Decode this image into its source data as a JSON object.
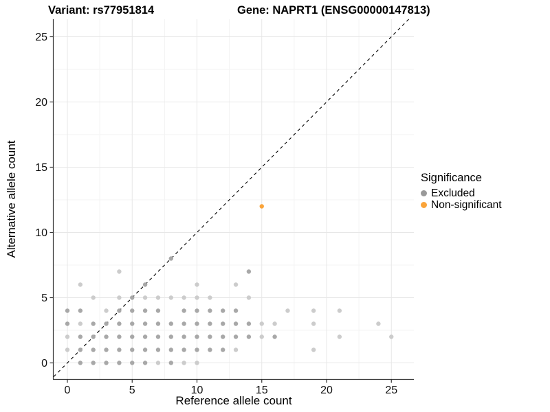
{
  "header": {
    "variant_title": "Variant: rs77951814",
    "gene_title": "Gene: NAPRT1 (ENSG00000147813)"
  },
  "chart_data": {
    "type": "scatter",
    "title": "",
    "xlabel": "Reference allele count",
    "ylabel": "Alternative allele count",
    "xlim": [
      0,
      25
    ],
    "ylim": [
      0,
      25
    ],
    "x_ticks": [
      0,
      5,
      10,
      15,
      20,
      25
    ],
    "y_ticks": [
      0,
      5,
      10,
      15,
      20,
      25
    ],
    "minor_gridlines": [
      2.5,
      7.5,
      12.5,
      17.5,
      22.5
    ],
    "grid": "major and minor, light gray on white",
    "identity_line": {
      "type": "dashed",
      "equation": "y = x",
      "color": "#000000"
    },
    "point_shades": {
      "1": "#cccccc",
      "2": "#a8a8a8"
    },
    "legend": {
      "title": "Significance",
      "position": "right",
      "items": [
        {
          "label": "Excluded",
          "color": "#999999"
        },
        {
          "label": "Non-significant",
          "color": "#FAA43A"
        }
      ]
    },
    "series": [
      {
        "name": "Excluded",
        "color": "#999999",
        "points": [
          [
            1,
            0,
            2
          ],
          [
            2,
            0,
            2
          ],
          [
            3,
            0,
            2
          ],
          [
            4,
            0,
            2
          ],
          [
            5,
            0,
            2
          ],
          [
            6,
            0,
            2
          ],
          [
            7,
            0,
            1
          ],
          [
            8,
            0,
            2
          ],
          [
            9,
            0,
            1
          ],
          [
            10,
            0,
            1
          ],
          [
            0,
            1,
            1
          ],
          [
            1,
            1,
            2
          ],
          [
            2,
            1,
            2
          ],
          [
            3,
            1,
            2
          ],
          [
            4,
            1,
            2
          ],
          [
            5,
            1,
            2
          ],
          [
            6,
            1,
            2
          ],
          [
            7,
            1,
            2
          ],
          [
            8,
            1,
            2
          ],
          [
            9,
            1,
            2
          ],
          [
            10,
            1,
            2
          ],
          [
            11,
            1,
            2
          ],
          [
            12,
            1,
            2
          ],
          [
            13,
            1,
            1
          ],
          [
            19,
            1,
            1
          ],
          [
            0,
            2,
            1
          ],
          [
            1,
            2,
            2
          ],
          [
            2,
            2,
            2
          ],
          [
            3,
            2,
            2
          ],
          [
            4,
            2,
            2
          ],
          [
            5,
            2,
            2
          ],
          [
            6,
            2,
            2
          ],
          [
            7,
            2,
            2
          ],
          [
            8,
            2,
            2
          ],
          [
            9,
            2,
            2
          ],
          [
            10,
            2,
            2
          ],
          [
            11,
            2,
            2
          ],
          [
            12,
            2,
            2
          ],
          [
            13,
            2,
            2
          ],
          [
            14,
            2,
            2
          ],
          [
            15,
            2,
            1
          ],
          [
            16,
            2,
            2
          ],
          [
            21,
            2,
            1
          ],
          [
            25,
            2,
            1
          ],
          [
            0,
            3,
            2
          ],
          [
            1,
            3,
            1
          ],
          [
            2,
            3,
            2
          ],
          [
            3,
            3,
            2
          ],
          [
            4,
            3,
            2
          ],
          [
            5,
            3,
            2
          ],
          [
            6,
            3,
            2
          ],
          [
            7,
            3,
            2
          ],
          [
            8,
            3,
            2
          ],
          [
            9,
            3,
            2
          ],
          [
            10,
            3,
            2
          ],
          [
            11,
            3,
            2
          ],
          [
            12,
            3,
            2
          ],
          [
            13,
            3,
            2
          ],
          [
            14,
            3,
            2
          ],
          [
            15,
            3,
            1
          ],
          [
            16,
            3,
            1
          ],
          [
            19,
            3,
            1
          ],
          [
            24,
            3,
            1
          ],
          [
            0,
            4,
            2
          ],
          [
            1,
            4,
            2
          ],
          [
            3,
            4,
            1
          ],
          [
            4,
            4,
            2
          ],
          [
            5,
            4,
            2
          ],
          [
            6,
            4,
            2
          ],
          [
            7,
            4,
            2
          ],
          [
            9,
            4,
            2
          ],
          [
            10,
            4,
            2
          ],
          [
            11,
            4,
            2
          ],
          [
            12,
            4,
            2
          ],
          [
            13,
            4,
            2
          ],
          [
            17,
            4,
            1
          ],
          [
            19,
            4,
            1
          ],
          [
            21,
            4,
            1
          ],
          [
            2,
            5,
            1
          ],
          [
            4,
            5,
            1
          ],
          [
            5,
            5,
            2
          ],
          [
            6,
            5,
            1
          ],
          [
            7,
            5,
            1
          ],
          [
            8,
            5,
            1
          ],
          [
            9,
            5,
            1
          ],
          [
            10,
            5,
            1
          ],
          [
            11,
            5,
            1
          ],
          [
            14,
            5,
            1
          ],
          [
            1,
            6,
            1
          ],
          [
            6,
            6,
            2
          ],
          [
            10,
            6,
            1
          ],
          [
            13,
            6,
            1
          ],
          [
            4,
            7,
            1
          ],
          [
            14,
            7,
            2
          ],
          [
            8,
            8,
            2
          ]
        ]
      },
      {
        "name": "Non-significant",
        "color": "#FAA43A",
        "points": [
          [
            15,
            12
          ]
        ]
      }
    ]
  }
}
